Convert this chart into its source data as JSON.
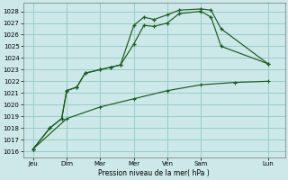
{
  "xlabel": "Pression niveau de la mer( hPa )",
  "bg_color": "#cce8e8",
  "grid_color": "#99cccc",
  "line_color": "#1a5c1a",
  "ylim": [
    1016,
    1028.5
  ],
  "yticks": [
    1016,
    1017,
    1018,
    1019,
    1020,
    1021,
    1022,
    1023,
    1024,
    1025,
    1026,
    1027,
    1028
  ],
  "xtick_labels": [
    "Jeu",
    "Dim",
    "Mar",
    "Mer",
    "Ven",
    "Sam",
    "Lun"
  ],
  "xtick_positions": [
    0,
    1,
    2,
    3,
    4,
    5,
    7
  ],
  "series1_x": [
    0.0,
    0.5,
    0.85,
    1.0,
    1.3,
    1.55,
    2.0,
    2.3,
    2.6,
    3.0,
    3.3,
    3.6,
    4.0,
    4.35,
    5.0,
    5.3,
    5.6,
    7.0
  ],
  "series1_y": [
    1016.2,
    1018.0,
    1018.8,
    1021.2,
    1021.5,
    1022.7,
    1023.0,
    1023.2,
    1023.4,
    1025.2,
    1026.8,
    1026.7,
    1027.0,
    1027.8,
    1028.0,
    1027.5,
    1025.0,
    1023.5
  ],
  "series2_x": [
    0.0,
    0.5,
    0.85,
    1.0,
    1.3,
    1.55,
    2.0,
    2.3,
    2.6,
    3.0,
    3.3,
    3.6,
    4.0,
    4.35,
    5.0,
    5.3,
    5.6,
    7.0
  ],
  "series2_y": [
    1016.2,
    1018.0,
    1018.8,
    1021.2,
    1021.5,
    1022.7,
    1023.0,
    1023.2,
    1023.4,
    1026.8,
    1027.5,
    1027.3,
    1027.7,
    1028.1,
    1028.2,
    1028.1,
    1026.5,
    1023.5
  ],
  "series3_x": [
    0.0,
    1.0,
    2.0,
    3.0,
    4.0,
    5.0,
    6.0,
    7.0
  ],
  "series3_y": [
    1016.2,
    1018.8,
    1019.8,
    1020.5,
    1021.2,
    1021.7,
    1021.9,
    1022.0
  ],
  "marker": "+"
}
